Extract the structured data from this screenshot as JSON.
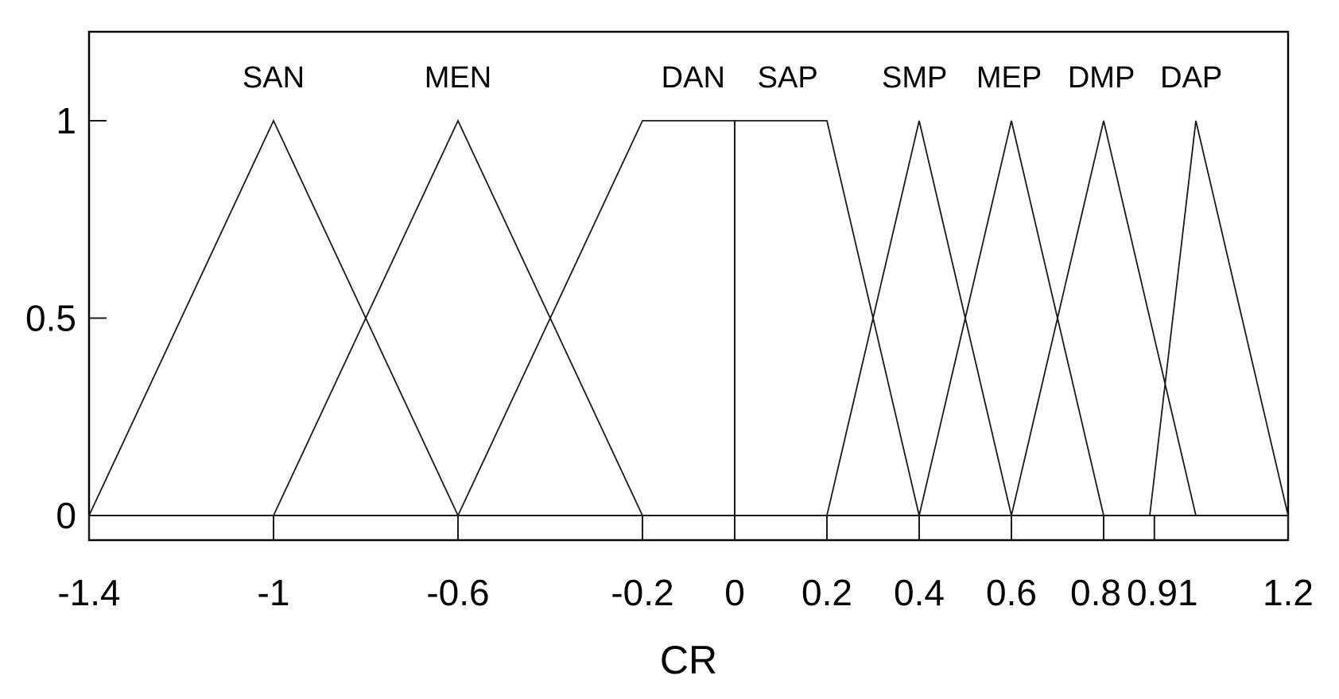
{
  "chart_data": {
    "type": "line",
    "title": "",
    "xlabel": "CR",
    "ylabel": "",
    "xlim": [
      -1.4,
      1.2
    ],
    "ylim": [
      0,
      1.2
    ],
    "x_tick_values": [
      -1.4,
      -1,
      -0.6,
      -0.2,
      0,
      0.2,
      0.4,
      0.6,
      0.8,
      0.91,
      1.2
    ],
    "x_tick_labels": [
      "-1.4",
      "-1",
      "-0.6",
      "-0.2",
      "0",
      "0.2",
      "0.4",
      "0.6",
      "0.8",
      "0.91",
      "1.2"
    ],
    "y_tick_values": [
      0,
      0.5,
      1
    ],
    "y_tick_labels": [
      "0",
      "0.5",
      "1"
    ],
    "grid": false,
    "series": [
      {
        "name": "SAN",
        "x": [
          -1.4,
          -1,
          -0.6
        ],
        "y": [
          0,
          1,
          0
        ]
      },
      {
        "name": "MEN",
        "x": [
          -1,
          -0.6,
          -0.2
        ],
        "y": [
          0,
          1,
          0
        ]
      },
      {
        "name": "DAN",
        "x": [
          -0.6,
          -0.2,
          0,
          0
        ],
        "y": [
          0,
          1,
          1,
          0
        ]
      },
      {
        "name": "SAP",
        "x": [
          0,
          0,
          0.2,
          0.4
        ],
        "y": [
          0,
          1,
          1,
          0
        ]
      },
      {
        "name": "SMP",
        "x": [
          0.2,
          0.4,
          0.6
        ],
        "y": [
          0,
          1,
          0
        ]
      },
      {
        "name": "MEP",
        "x": [
          0.4,
          0.6,
          0.8
        ],
        "y": [
          0,
          1,
          0
        ]
      },
      {
        "name": "DMP",
        "x": [
          0.6,
          0.8,
          1.0
        ],
        "y": [
          0,
          1,
          0
        ]
      },
      {
        "name": "DAP",
        "x": [
          0.9,
          1.0,
          1.2
        ],
        "y": [
          0,
          1,
          0
        ]
      }
    ],
    "labels": [
      {
        "text": "SAN",
        "x": -1.0
      },
      {
        "text": "MEN",
        "x": -0.6
      },
      {
        "text": "DAN",
        "x": -0.09
      },
      {
        "text": "SAP",
        "x": 0.115
      },
      {
        "text": "SMP",
        "x": 0.39
      },
      {
        "text": "MEP",
        "x": 0.595
      },
      {
        "text": "DMP",
        "x": 0.795
      },
      {
        "text": "DAP",
        "x": 0.99
      }
    ]
  }
}
